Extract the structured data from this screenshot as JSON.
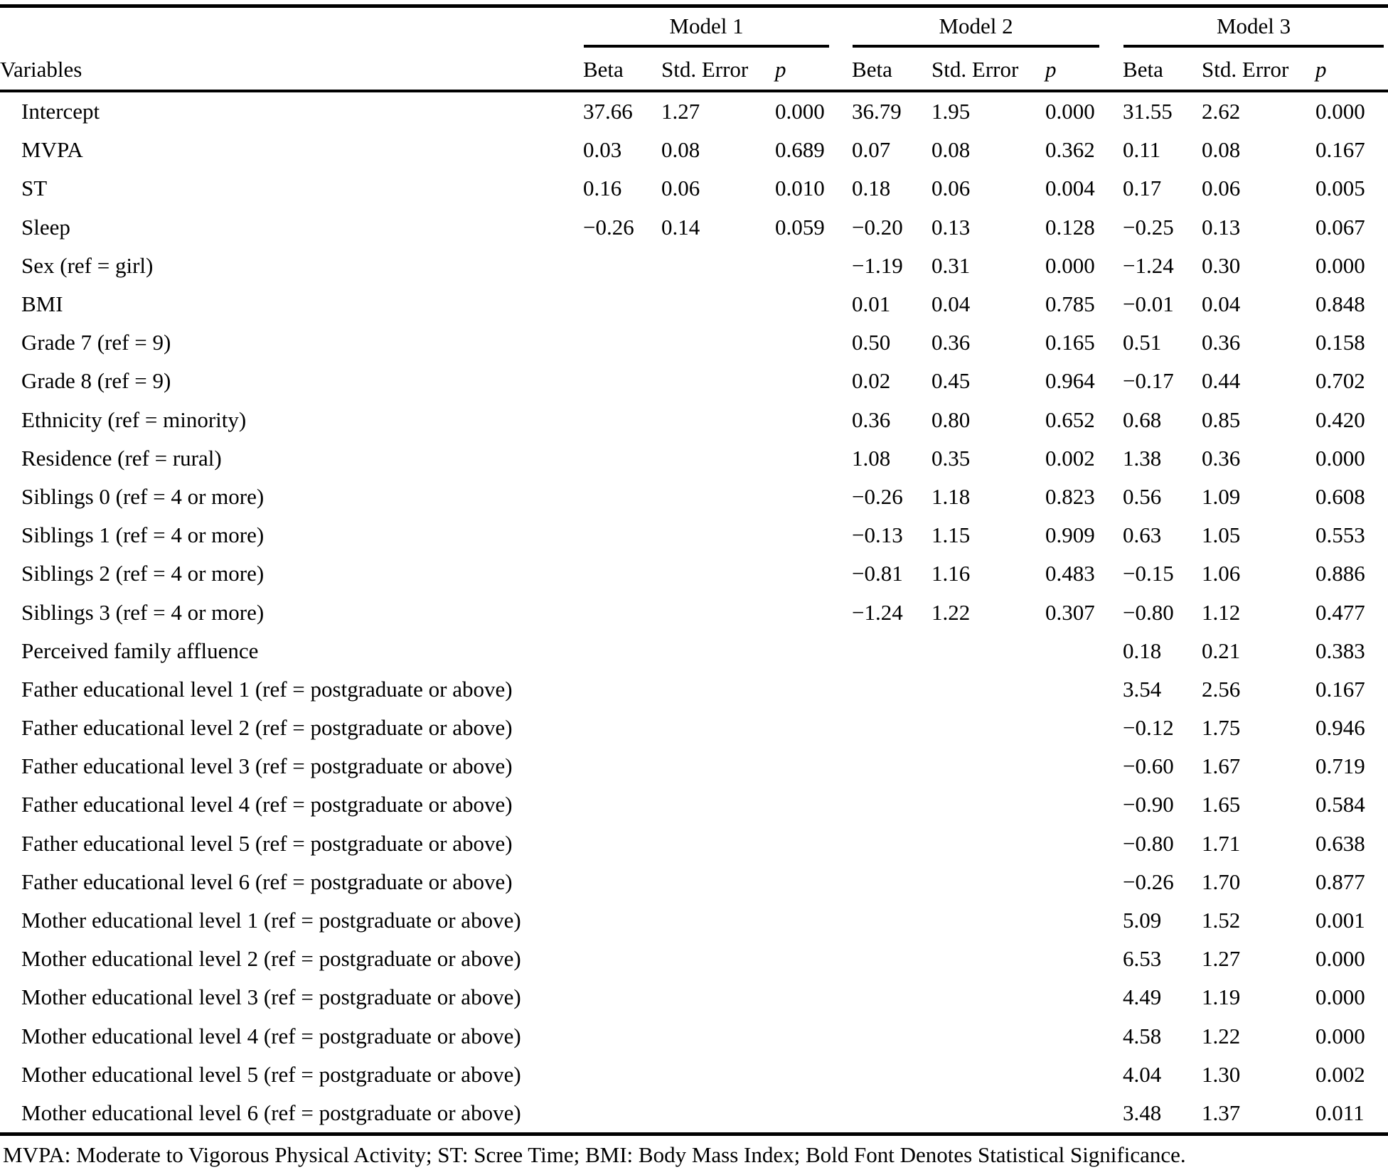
{
  "table": {
    "models": [
      "Model 1",
      "Model 2",
      "Model 3"
    ],
    "variables_header": "Variables",
    "sub_columns": [
      "Beta",
      "Std. Error",
      "p"
    ],
    "text_color": "#000000",
    "rule_color": "#000000",
    "rows": [
      {
        "label": "Intercept",
        "m1": [
          "37.66",
          "1.27",
          "0.000"
        ],
        "m2": [
          "36.79",
          "1.95",
          "0.000"
        ],
        "m3": [
          "31.55",
          "2.62",
          "0.000"
        ]
      },
      {
        "label": "MVPA",
        "m1": [
          "0.03",
          "0.08",
          "0.689"
        ],
        "m2": [
          "0.07",
          "0.08",
          "0.362"
        ],
        "m3": [
          "0.11",
          "0.08",
          "0.167"
        ]
      },
      {
        "label": "ST",
        "m1": [
          "0.16",
          "0.06",
          "0.010"
        ],
        "m2": [
          "0.18",
          "0.06",
          "0.004"
        ],
        "m3": [
          "0.17",
          "0.06",
          "0.005"
        ]
      },
      {
        "label": "Sleep",
        "m1": [
          "−0.26",
          "0.14",
          "0.059"
        ],
        "m2": [
          "−0.20",
          "0.13",
          "0.128"
        ],
        "m3": [
          "−0.25",
          "0.13",
          "0.067"
        ]
      },
      {
        "label": "Sex (ref = girl)",
        "m1": null,
        "m2": [
          "−1.19",
          "0.31",
          "0.000"
        ],
        "m3": [
          "−1.24",
          "0.30",
          "0.000"
        ]
      },
      {
        "label": "BMI",
        "m1": null,
        "m2": [
          "0.01",
          "0.04",
          "0.785"
        ],
        "m3": [
          "−0.01",
          "0.04",
          "0.848"
        ]
      },
      {
        "label": "Grade 7 (ref = 9)",
        "m1": null,
        "m2": [
          "0.50",
          "0.36",
          "0.165"
        ],
        "m3": [
          "0.51",
          "0.36",
          "0.158"
        ]
      },
      {
        "label": "Grade 8 (ref = 9)",
        "m1": null,
        "m2": [
          "0.02",
          "0.45",
          "0.964"
        ],
        "m3": [
          "−0.17",
          "0.44",
          "0.702"
        ]
      },
      {
        "label": "Ethnicity (ref = minority)",
        "m1": null,
        "m2": [
          "0.36",
          "0.80",
          "0.652"
        ],
        "m3": [
          "0.68",
          "0.85",
          "0.420"
        ]
      },
      {
        "label": "Residence (ref = rural)",
        "m1": null,
        "m2": [
          "1.08",
          "0.35",
          "0.002"
        ],
        "m3": [
          "1.38",
          "0.36",
          "0.000"
        ]
      },
      {
        "label": "Siblings 0 (ref = 4 or more)",
        "m1": null,
        "m2": [
          "−0.26",
          "1.18",
          "0.823"
        ],
        "m3": [
          "0.56",
          "1.09",
          "0.608"
        ]
      },
      {
        "label": "Siblings 1 (ref = 4 or more)",
        "m1": null,
        "m2": [
          "−0.13",
          "1.15",
          "0.909"
        ],
        "m3": [
          "0.63",
          "1.05",
          "0.553"
        ]
      },
      {
        "label": "Siblings 2 (ref = 4 or more)",
        "m1": null,
        "m2": [
          "−0.81",
          "1.16",
          "0.483"
        ],
        "m3": [
          "−0.15",
          "1.06",
          "0.886"
        ]
      },
      {
        "label": "Siblings 3 (ref = 4 or more)",
        "m1": null,
        "m2": [
          "−1.24",
          "1.22",
          "0.307"
        ],
        "m3": [
          "−0.80",
          "1.12",
          "0.477"
        ]
      },
      {
        "label": "Perceived family affluence",
        "m1": null,
        "m2": null,
        "m3": [
          "0.18",
          "0.21",
          "0.383"
        ]
      },
      {
        "label": "Father educational level 1 (ref = postgraduate or above)",
        "m1": null,
        "m2": null,
        "m3": [
          "3.54",
          "2.56",
          "0.167"
        ]
      },
      {
        "label": "Father educational level 2 (ref = postgraduate or above)",
        "m1": null,
        "m2": null,
        "m3": [
          "−0.12",
          "1.75",
          "0.946"
        ]
      },
      {
        "label": "Father educational level 3 (ref = postgraduate or above)",
        "m1": null,
        "m2": null,
        "m3": [
          "−0.60",
          "1.67",
          "0.719"
        ]
      },
      {
        "label": "Father educational level 4 (ref = postgraduate or above)",
        "m1": null,
        "m2": null,
        "m3": [
          "−0.90",
          "1.65",
          "0.584"
        ]
      },
      {
        "label": "Father educational level 5 (ref = postgraduate or above)",
        "m1": null,
        "m2": null,
        "m3": [
          "−0.80",
          "1.71",
          "0.638"
        ]
      },
      {
        "label": "Father educational level 6 (ref = postgraduate or above)",
        "m1": null,
        "m2": null,
        "m3": [
          "−0.26",
          "1.70",
          "0.877"
        ]
      },
      {
        "label": "Mother educational level 1 (ref = postgraduate or above)",
        "m1": null,
        "m2": null,
        "m3": [
          "5.09",
          "1.52",
          "0.001"
        ]
      },
      {
        "label": "Mother educational level 2 (ref = postgraduate or above)",
        "m1": null,
        "m2": null,
        "m3": [
          "6.53",
          "1.27",
          "0.000"
        ]
      },
      {
        "label": "Mother educational level 3 (ref = postgraduate or above)",
        "m1": null,
        "m2": null,
        "m3": [
          "4.49",
          "1.19",
          "0.000"
        ]
      },
      {
        "label": "Mother educational level 4 (ref = postgraduate or above)",
        "m1": null,
        "m2": null,
        "m3": [
          "4.58",
          "1.22",
          "0.000"
        ]
      },
      {
        "label": "Mother educational level 5 (ref = postgraduate or above)",
        "m1": null,
        "m2": null,
        "m3": [
          "4.04",
          "1.30",
          "0.002"
        ]
      },
      {
        "label": "Mother educational level 6 (ref = postgraduate or above)",
        "m1": null,
        "m2": null,
        "m3": [
          "3.48",
          "1.37",
          "0.011"
        ]
      }
    ],
    "footnote": "MVPA: Moderate to Vigorous Physical Activity; ST: Scree Time; BMI: Body Mass Index; Bold Font Denotes Statistical Significance."
  }
}
